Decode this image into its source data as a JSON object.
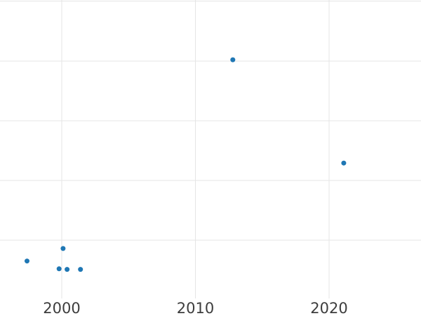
{
  "chart_data": {
    "type": "scatter",
    "title": "",
    "xlabel": "",
    "ylabel": "",
    "legend": null,
    "grid": true,
    "background_color": "#ffffff",
    "gridline_color": "#e5e5e5",
    "marker_color": "#1f77b4",
    "tick_label_color": "#3d3d3d",
    "x_ticks": [
      2000,
      2010,
      2020
    ],
    "x_tick_labels": [
      "2000",
      "2010",
      "2020"
    ],
    "y_ticks_visible": false,
    "y_gridline_values": [
      1,
      2,
      3,
      4,
      5
    ],
    "y_unit_note": "y-axis labels not visible in image; values estimated in gridline units",
    "xlim": [
      1995.38,
      2026.88
    ],
    "ylim": [
      -0.27,
      5.02
    ],
    "points": [
      {
        "x": 1997.4,
        "y": 0.65
      },
      {
        "x": 1999.8,
        "y": 0.52
      },
      {
        "x": 2000.1,
        "y": 0.86
      },
      {
        "x": 2000.4,
        "y": 0.51
      },
      {
        "x": 2001.4,
        "y": 0.51
      },
      {
        "x": 2012.8,
        "y": 4.02
      },
      {
        "x": 2021.1,
        "y": 2.29
      }
    ]
  }
}
